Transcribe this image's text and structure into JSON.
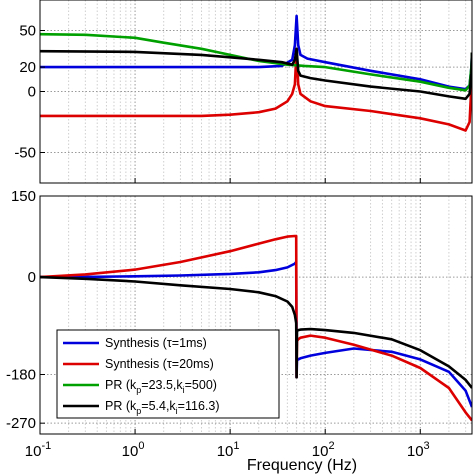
{
  "chart_data": [
    {
      "type": "line",
      "title": "",
      "xlabel": "",
      "ylabel": "",
      "xscale": "log",
      "xlim": [
        0.1,
        3500
      ],
      "ylim": [
        -75,
        75
      ],
      "yticks": [
        -50,
        0,
        20,
        50
      ],
      "ytick_labels": [
        "-50",
        "0",
        "20",
        "50"
      ],
      "grid": true,
      "series": [
        {
          "color": "#0000dd",
          "x": [
            0.1,
            1,
            5,
            20,
            35,
            45,
            48,
            50,
            52,
            55,
            65,
            100,
            300,
            1000,
            2000,
            3000,
            3300,
            3450,
            3500
          ],
          "y": [
            20,
            20,
            20,
            20,
            21,
            26,
            38,
            62,
            38,
            30,
            27,
            24,
            17,
            10,
            4,
            2,
            5,
            20,
            32
          ]
        },
        {
          "color": "#dd0000",
          "x": [
            0.1,
            1,
            5,
            10,
            20,
            30,
            40,
            45,
            48,
            50,
            52,
            55,
            70,
            100,
            300,
            1000,
            2000,
            3000,
            3300,
            3450,
            3500
          ],
          "y": [
            -20,
            -20,
            -20,
            -19,
            -17,
            -14,
            -8,
            -2,
            6,
            35,
            6,
            -2,
            -8,
            -12,
            -16,
            -22,
            -27,
            -32,
            -25,
            5,
            32
          ]
        },
        {
          "color": "#00a000",
          "x": [
            0.1,
            0.3,
            1,
            2,
            5,
            10,
            20,
            40,
            50,
            60,
            100,
            300,
            1000,
            2000,
            3000,
            3300,
            3450,
            3500
          ],
          "y": [
            47,
            46.5,
            44,
            40,
            35,
            30,
            25,
            22,
            21.5,
            21,
            20,
            14,
            8,
            3,
            1,
            5,
            20,
            32
          ]
        },
        {
          "color": "#000000",
          "x": [
            0.1,
            1,
            5,
            10,
            20,
            35,
            45,
            48,
            50,
            52,
            55,
            70,
            100,
            300,
            1000,
            2000,
            3000,
            3300,
            3450,
            3500
          ],
          "y": [
            33,
            32.5,
            30,
            28,
            26,
            24,
            22,
            26,
            35,
            17,
            13,
            11,
            9,
            4,
            0,
            -4,
            -6,
            -2,
            15,
            32
          ]
        }
      ]
    },
    {
      "type": "line",
      "title": "",
      "xlabel": "Frequency (Hz)",
      "ylabel": "",
      "xscale": "log",
      "xlim": [
        0.1,
        3500
      ],
      "ylim": [
        -290,
        150
      ],
      "yticks": [
        -270,
        -180,
        0,
        150
      ],
      "ytick_labels": [
        "-270",
        "-180",
        "0",
        "150"
      ],
      "xticks": [
        0.1,
        1,
        10,
        100,
        1000
      ],
      "xtick_labels": [
        {
          "base": "10",
          "exp": "-1"
        },
        {
          "base": "10",
          "exp": "0"
        },
        {
          "base": "10",
          "exp": "1"
        },
        {
          "base": "10",
          "exp": "2"
        },
        {
          "base": "10",
          "exp": "3"
        }
      ],
      "grid": true,
      "legend": {
        "location": "bottom-left",
        "entries": [
          {
            "color": "#0000dd",
            "parts": [
              {
                "t": "Synthesis (τ=1ms)"
              }
            ]
          },
          {
            "color": "#dd0000",
            "parts": [
              {
                "t": "Synthesis (τ=20ms)"
              }
            ]
          },
          {
            "color": "#00a000",
            "parts": [
              {
                "t": "PR (k"
              },
              {
                "t": "p",
                "sub": true
              },
              {
                "t": "=23.5,k"
              },
              {
                "t": "i",
                "sub": true
              },
              {
                "t": "=500)"
              }
            ]
          },
          {
            "color": "#000000",
            "parts": [
              {
                "t": "PR (k"
              },
              {
                "t": "p",
                "sub": true
              },
              {
                "t": "=5.4,k"
              },
              {
                "t": "i",
                "sub": true
              },
              {
                "t": "=116.3)"
              }
            ]
          }
        ]
      },
      "series": [
        {
          "color": "#0000dd",
          "x": [
            0.1,
            0.3,
            1,
            3,
            10,
            20,
            30,
            40,
            48,
            49.5,
            50,
            50.5,
            52,
            55,
            70,
            100,
            200,
            500,
            1000,
            2000,
            3000,
            3500
          ],
          "y": [
            0,
            0.5,
            1.5,
            3,
            6,
            9,
            13,
            18,
            25,
            28,
            -185,
            -150,
            -152,
            -150,
            -145,
            -140,
            -132,
            -138,
            -152,
            -175,
            -210,
            -240
          ]
        },
        {
          "color": "#dd0000",
          "x": [
            0.1,
            0.3,
            1,
            3,
            10,
            20,
            30,
            40,
            48,
            49.5,
            50,
            50.5,
            52,
            55,
            70,
            100,
            200,
            500,
            1000,
            2000,
            3000,
            3500
          ],
          "y": [
            0,
            5,
            14,
            28,
            48,
            62,
            70,
            75,
            76,
            76,
            -185,
            -118,
            -115,
            -112,
            -108,
            -112,
            -125,
            -145,
            -168,
            -205,
            -250,
            -265
          ]
        },
        {
          "color": "#000000",
          "x": [
            0.1,
            0.3,
            1,
            3,
            10,
            20,
            30,
            40,
            45,
            48,
            49.5,
            50,
            50.5,
            52,
            55,
            70,
            100,
            200,
            500,
            1000,
            2000,
            3000,
            3500
          ],
          "y": [
            0,
            -3,
            -8,
            -15,
            -22,
            -28,
            -35,
            -45,
            -55,
            -70,
            -85,
            -185,
            -100,
            -98,
            -97,
            -96,
            -98,
            -103,
            -115,
            -135,
            -165,
            -190,
            -205
          ]
        }
      ]
    }
  ]
}
